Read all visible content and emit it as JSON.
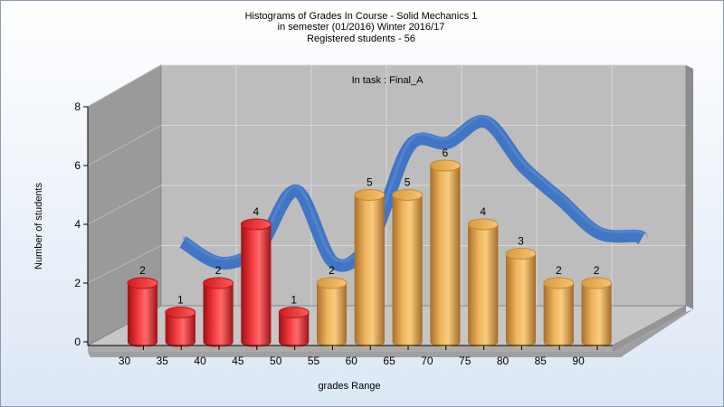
{
  "chart_data": {
    "type": "bar",
    "title_lines": [
      "Histograms of Grades  In Course - Solid Mechanics 1",
      "in semester  (01/2016) Winter 2016/17",
      "Registered students - 56"
    ],
    "subtitle": "In task : Final_A",
    "xlabel": "grades Range",
    "ylabel": "Number of students",
    "x_tick_labels": [
      "30",
      "35",
      "40",
      "45",
      "50",
      "55",
      "60",
      "65",
      "70",
      "75",
      "80",
      "85",
      "90"
    ],
    "y_ticks": [
      0,
      2,
      4,
      6,
      8
    ],
    "ylim": [
      0,
      8
    ],
    "bars": [
      {
        "value": 2,
        "label": "2",
        "color": "red"
      },
      {
        "value": 1,
        "label": "1",
        "color": "red"
      },
      {
        "value": 2,
        "label": "2",
        "color": "red"
      },
      {
        "value": 4,
        "label": "4",
        "color": "red"
      },
      {
        "value": 1,
        "label": "1",
        "color": "red"
      },
      {
        "value": 2,
        "label": "2",
        "color": "orange"
      },
      {
        "value": 5,
        "label": "5",
        "color": "orange"
      },
      {
        "value": 5,
        "label": "5",
        "color": "orange"
      },
      {
        "value": 6,
        "label": "6",
        "color": "orange"
      },
      {
        "value": 4,
        "label": "4",
        "color": "orange"
      },
      {
        "value": 3,
        "label": "3",
        "color": "orange"
      },
      {
        "value": 2,
        "label": "2",
        "color": "orange"
      },
      {
        "value": 2,
        "label": "2",
        "color": "orange"
      }
    ],
    "curve_values": [
      2.6,
      1.9,
      2.4,
      4.3,
      1.9,
      2.7,
      5.8,
      5.9,
      6.6,
      5.1,
      4.0,
      2.9,
      2.8
    ],
    "colors": {
      "red_bar": "#e8262b",
      "orange_bar": "#e3a64c",
      "curve": "#3a72c4",
      "back_wall": "#bdbdbd",
      "side_wall": "#999999",
      "floor": "#c4c4c4",
      "background_top": "#ffffff",
      "background_bottom": "#dce7f5"
    },
    "grid": true,
    "legend": "none"
  }
}
